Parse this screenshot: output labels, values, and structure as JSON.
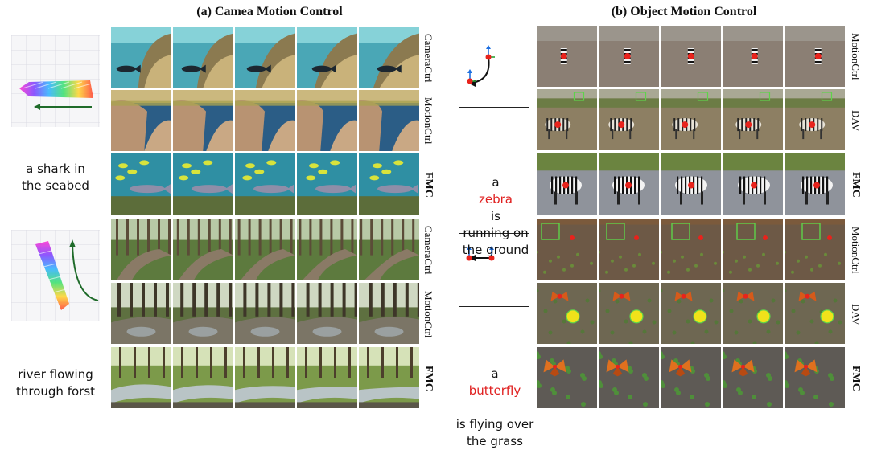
{
  "panel_a": {
    "title": "(a) Camea Motion Control",
    "groups": [
      {
        "caption": "a shark in\nthe seabed",
        "rows": [
          {
            "label": "CameraCtrl",
            "bold": false,
            "scene": "shark-coral"
          },
          {
            "label": "MotionCtrl",
            "bold": false,
            "scene": "coral-water"
          },
          {
            "label": "FMC",
            "bold": true,
            "scene": "shark-fish"
          }
        ]
      },
      {
        "caption": "river flowing\nthrough forst",
        "rows": [
          {
            "label": "CameraCtrl",
            "bold": false,
            "scene": "forest-stream"
          },
          {
            "label": "MotionCtrl",
            "bold": false,
            "scene": "forest-rocks"
          },
          {
            "label": "FMC",
            "bold": true,
            "scene": "forest-river"
          }
        ]
      }
    ]
  },
  "panel_b": {
    "title": "(b) Object Motion Control",
    "groups": [
      {
        "caption_before": "a",
        "caption_highlight": "zebra",
        "caption_after": "is\nrunning on\nthe ground",
        "rows": [
          {
            "label": "MotionCtrl",
            "bold": false,
            "scene": "zebra-small"
          },
          {
            "label": "DAV",
            "bold": false,
            "scene": "zebra-field"
          },
          {
            "label": "FMC",
            "bold": true,
            "scene": "zebra-road"
          }
        ]
      },
      {
        "caption_before": "a",
        "caption_highlight": "butterfly",
        "caption_after": "\nis flying over\nthe grass",
        "rows": [
          {
            "label": "MotionCtrl",
            "bold": false,
            "scene": "butterfly-dirt"
          },
          {
            "label": "DAV",
            "bold": false,
            "scene": "butterfly-yellow"
          },
          {
            "label": "FMC",
            "bold": true,
            "scene": "butterfly-grass"
          }
        ]
      }
    ]
  },
  "colors": {
    "caption_highlight": "#e02020",
    "trajectory_arrow": "#1f6b2a",
    "point_red": "#e8231c",
    "axis_blue": "#1e6fe0",
    "axis_green": "#2aa236"
  },
  "icons": [
    "camera-rainbow-trajectory-icon",
    "object-trajectory-icon"
  ]
}
